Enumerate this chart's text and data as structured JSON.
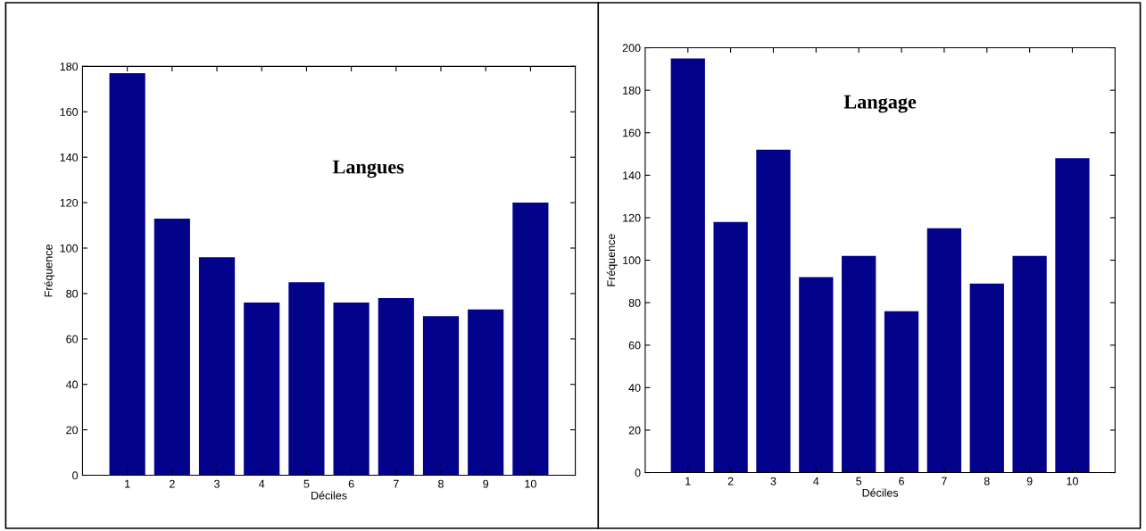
{
  "chart_data": [
    {
      "type": "bar",
      "title": "Langues",
      "xlabel": "Déciles",
      "ylabel": "Fréquence",
      "categories": [
        "1",
        "2",
        "3",
        "4",
        "5",
        "6",
        "7",
        "8",
        "9",
        "10"
      ],
      "color": "#02028a",
      "values": [
        177,
        113,
        96,
        76,
        85,
        76,
        78,
        70,
        73,
        120
      ],
      "ylim": [
        0,
        180
      ],
      "yticks": [
        0,
        20,
        40,
        60,
        80,
        100,
        120,
        140,
        160,
        180
      ],
      "grid": false,
      "legend": false
    },
    {
      "type": "bar",
      "title": "Langage",
      "xlabel": "Déciles",
      "ylabel": "Fréquence",
      "categories": [
        "1",
        "2",
        "3",
        "4",
        "5",
        "6",
        "7",
        "8",
        "9",
        "10"
      ],
      "color": "#02028a",
      "values": [
        195,
        118,
        152,
        92,
        102,
        76,
        115,
        89,
        102,
        148
      ],
      "ylim": [
        0,
        200
      ],
      "yticks": [
        0,
        20,
        40,
        60,
        80,
        100,
        120,
        140,
        160,
        180,
        200
      ],
      "grid": false,
      "legend": false
    }
  ]
}
